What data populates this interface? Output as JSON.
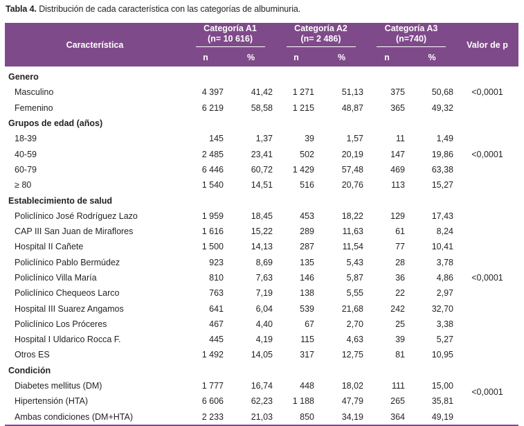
{
  "caption": {
    "label": "Tabla 4.",
    "text": " Distribución de cada característica con las categorías de albuminuria."
  },
  "header": {
    "characteristic": "Característica",
    "cat_a1": "Categoría A1",
    "cat_a1_n": "(n= 10 616)",
    "cat_a2": "Categoría A2",
    "cat_a2_n": "(n= 2 486)",
    "cat_a3": "Categoría A3",
    "cat_a3_n": "(n=740)",
    "pvalue": "Valor de p",
    "n": "n",
    "pct": "%"
  },
  "sections": {
    "genero": {
      "title": "Genero",
      "p": "<0,0001"
    },
    "edad": {
      "title": "Grupos de edad (años)",
      "p": "<0,0001"
    },
    "estab": {
      "title": "Establecimiento de salud",
      "p": "<0,0001"
    },
    "cond": {
      "title": "Condición",
      "p": "<0,0001"
    }
  },
  "rows": {
    "masc": {
      "label": "Masculino",
      "n1": "4 397",
      "p1": "41,42",
      "n2": "1 271",
      "p2": "51,13",
      "n3": "375",
      "p3": "50,68"
    },
    "fem": {
      "label": "Femenino",
      "n1": "6 219",
      "p1": "58,58",
      "n2": "1 215",
      "p2": "48,87",
      "n3": "365",
      "p3": "49,32"
    },
    "e1839": {
      "label": "18-39",
      "n1": "145",
      "p1": "1,37",
      "n2": "39",
      "p2": "1,57",
      "n3": "11",
      "p3": "1,49"
    },
    "e4059": {
      "label": "40-59",
      "n1": "2 485",
      "p1": "23,41",
      "n2": "502",
      "p2": "20,19",
      "n3": "147",
      "p3": "19,86"
    },
    "e6079": {
      "label": "60-79",
      "n1": "6 446",
      "p1": "60,72",
      "n2": "1 429",
      "p2": "57,48",
      "n3": "469",
      "p3": "63,38"
    },
    "e80": {
      "label": "≥ 80",
      "n1": "1 540",
      "p1": "14,51",
      "n2": "516",
      "p2": "20,76",
      "n3": "113",
      "p3": "15,27"
    },
    "s1": {
      "label": "Policlínico José Rodríguez Lazo",
      "n1": "1 959",
      "p1": "18,45",
      "n2": "453",
      "p2": "18,22",
      "n3": "129",
      "p3": "17,43"
    },
    "s2": {
      "label": "CAP III San Juan de Miraflores",
      "n1": "1 616",
      "p1": "15,22",
      "n2": "289",
      "p2": "11,63",
      "n3": "61",
      "p3": "8,24"
    },
    "s3": {
      "label": "Hospital II Cañete",
      "n1": "1 500",
      "p1": "14,13",
      "n2": "287",
      "p2": "11,54",
      "n3": "77",
      "p3": "10,41"
    },
    "s4": {
      "label": "Policlínico Pablo Bermúdez",
      "n1": "923",
      "p1": "8,69",
      "n2": "135",
      "p2": "5,43",
      "n3": "28",
      "p3": "3,78"
    },
    "s5": {
      "label": "Policlínico Villa María",
      "n1": "810",
      "p1": "7,63",
      "n2": "146",
      "p2": "5,87",
      "n3": "36",
      "p3": "4,86"
    },
    "s6": {
      "label": "Policlínico Chequeos Larco",
      "n1": "763",
      "p1": "7,19",
      "n2": "138",
      "p2": "5,55",
      "n3": "22",
      "p3": "2,97"
    },
    "s7": {
      "label": "Hospital III Suarez Angamos",
      "n1": "641",
      "p1": "6,04",
      "n2": "539",
      "p2": "21,68",
      "n3": "242",
      "p3": "32,70"
    },
    "s8": {
      "label": "Policlínico Los Próceres",
      "n1": "467",
      "p1": "4,40",
      "n2": "67",
      "p2": "2,70",
      "n3": "25",
      "p3": "3,38"
    },
    "s9": {
      "label": "Hospital I Uldarico Rocca F.",
      "n1": "445",
      "p1": "4,19",
      "n2": "115",
      "p2": "4,63",
      "n3": "39",
      "p3": "5,27"
    },
    "s10": {
      "label": "Otros ES",
      "n1": "1 492",
      "p1": "14,05",
      "n2": "317",
      "p2": "12,75",
      "n3": "81",
      "p3": "10,95"
    },
    "dm": {
      "label": "Diabetes mellitus (DM)",
      "n1": "1 777",
      "p1": "16,74",
      "n2": "448",
      "p2": "18,02",
      "n3": "111",
      "p3": "15,00"
    },
    "hta": {
      "label": "Hipertensión (HTA)",
      "n1": "6 606",
      "p1": "62,23",
      "n2": "1 188",
      "p2": "47,79",
      "n3": "265",
      "p3": "35,81"
    },
    "amb": {
      "label": "Ambas condiciones (DM+HTA)",
      "n1": "2 233",
      "p1": "21,03",
      "n2": "850",
      "p2": "34,19",
      "n3": "364",
      "p3": "49,19"
    }
  }
}
